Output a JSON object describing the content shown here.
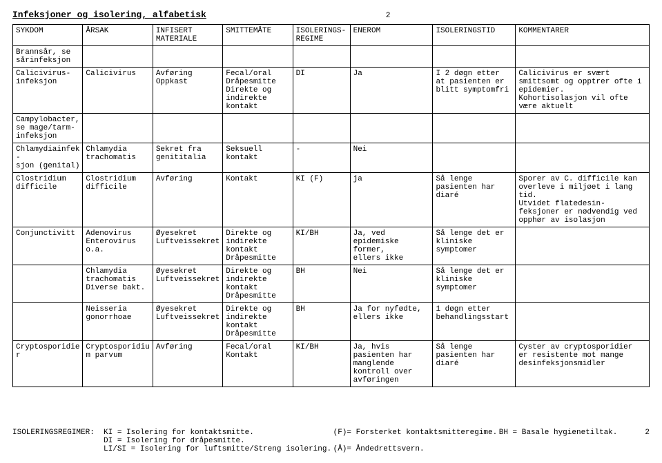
{
  "doc": {
    "title": "Infeksjoner og isolering, alfabetisk",
    "page_number_top": "2",
    "page_number_bottom": "2"
  },
  "table": {
    "headers": [
      "SYKDOM",
      "ÅRSAK",
      "INFISERT\nMATERIALE",
      "SMITTEMÅTE",
      "ISOLERINGS-\nREGIME",
      "ENEROM",
      "ISOLERINGSTID",
      "KOMMENTARER"
    ],
    "rows": [
      [
        "Brannsår, se sårinfeksjon",
        "",
        "",
        "",
        "",
        "",
        "",
        ""
      ],
      [
        "Calicivirus-\ninfeksjon",
        "Calicivirus",
        "Avføring\nOppkast",
        "Fecal/oral\nDråpesmitte\nDirekte og indirekte kontakt",
        "DI",
        "Ja",
        "I 2 døgn etter at pasienten er blitt symptomfri",
        "Calicivirus er svært smittsomt og opptrer ofte i epidemier.\nKohortisolasjon vil ofte være aktuelt"
      ],
      [
        "Campylobacter, se mage/tarm-\ninfeksjon",
        "",
        "",
        "",
        "",
        "",
        "",
        ""
      ],
      [
        "Chlamydiainfek-\nsjon (genital)",
        "Chlamydia trachomatis",
        "Sekret fra genititalia",
        "Seksuell kontakt",
        "-",
        "Nei",
        "",
        ""
      ],
      [
        "Clostridium difficile",
        "Clostridium difficile",
        "Avføring",
        "Kontakt",
        "KI (F)",
        "ja",
        "Så lenge pasienten har diaré",
        "Sporer av C. difficile kan overleve i miljøet i lang tid.\nUtvidet flatedesin-\nfeksjoner er nødvendig ved opphør av isolasjon"
      ],
      [
        "Conjunctivitt",
        "Adenovirus\nEnterovirus o.a.",
        "Øyesekret\nLuftveissekret",
        "Direkte og indirekte kontakt\nDråpesmitte",
        "KI/BH",
        "Ja, ved epidemiske former,\nellers ikke",
        "Så lenge det er kliniske symptomer",
        ""
      ],
      [
        "",
        "Chlamydia trachomatis\nDiverse bakt.",
        "Øyesekret\nLuftveissekret",
        "Direkte og indirekte kontakt\nDråpesmitte",
        "BH",
        "Nei",
        "Så lenge det er kliniske symptomer",
        ""
      ],
      [
        "",
        "Neisseria gonorrhoae",
        "Øyesekret\nLuftveissekret",
        "Direkte og indirekte kontakt\nDråpesmitte",
        "BH",
        "Ja for nyfødte,\nellers ikke",
        "1 døgn etter behandlingsstart",
        ""
      ],
      [
        "Cryptosporidier",
        "Cryptosporidium parvum",
        "Avføring",
        "Fecal/oral\nKontakt",
        "KI/BH",
        "Ja, hvis pasienten har manglende kontroll over avføringen",
        "Så lenge pasienten har diaré",
        "Cyster av cryptosporidier er resistente mot mange desinfeksjonsmidler"
      ]
    ]
  },
  "legend": {
    "left": "ISOLERINGSREGIMER:  KI = Isolering for kontaktsmitte.\n                    DI = Isolering for dråpesmitte.\n                    LI/SI = Isolering for luftsmitte/Streng isolering.",
    "mid": "(F)= Forsterket kontaktsmitteregime.\n\n(Å)= Åndedrettsvern.",
    "right": "BH = Basale hygienetiltak."
  }
}
